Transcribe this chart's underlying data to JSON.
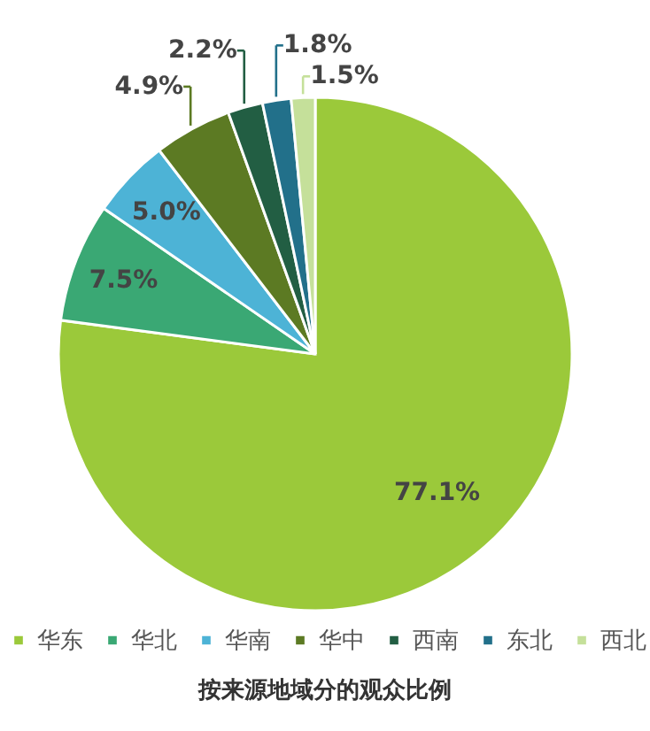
{
  "chart_data": {
    "type": "pie",
    "title": "按来源地域分的观众比例",
    "categories": [
      "华东",
      "华北",
      "华南",
      "华中",
      "西南",
      "东北",
      "西北"
    ],
    "values": [
      77.1,
      7.5,
      5.0,
      4.9,
      2.2,
      1.8,
      1.5
    ],
    "value_labels": [
      "77.1%",
      "7.5%",
      "5.0%",
      "4.9%",
      "2.2%",
      "1.8%",
      "1.5%"
    ],
    "colors": [
      "#9bc93a",
      "#3aa874",
      "#4db3d6",
      "#5c7a23",
      "#225e43",
      "#22708a",
      "#c5e09a"
    ],
    "legend": "bottom"
  }
}
